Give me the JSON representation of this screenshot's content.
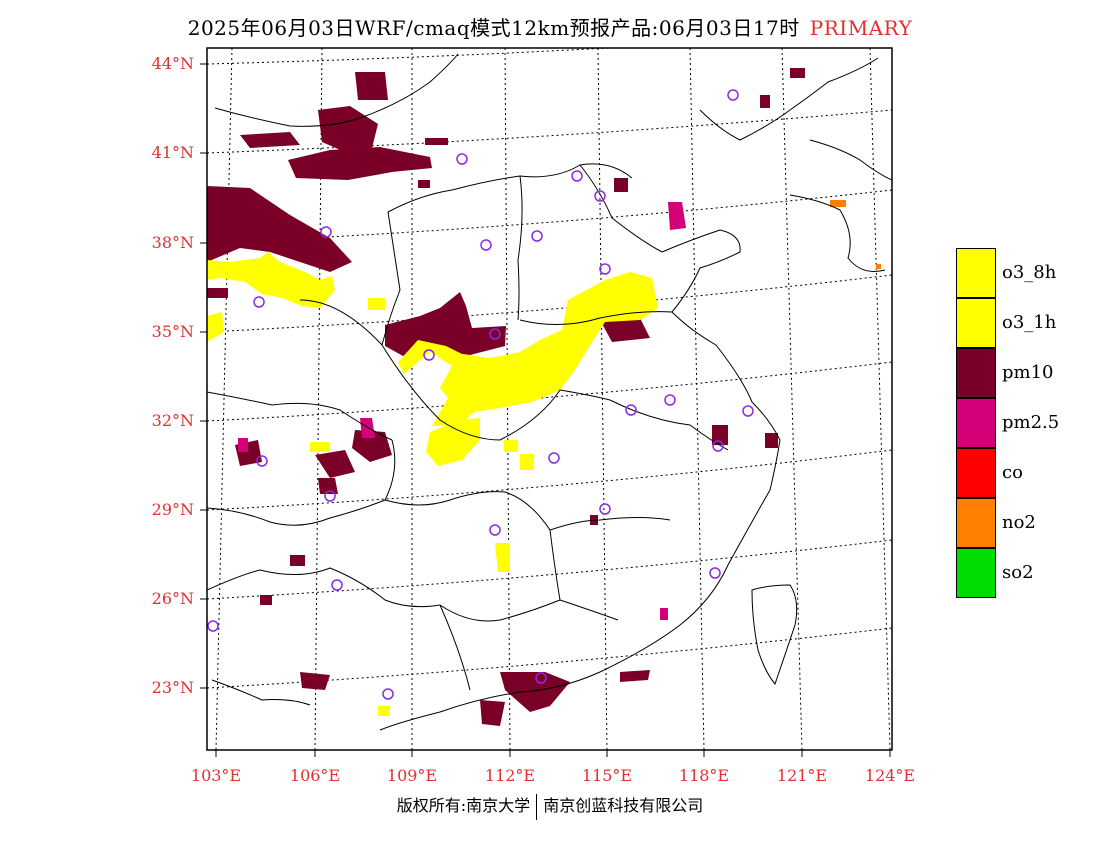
{
  "header": {
    "title": "2025年06月03日WRF/cmaq模式12km预报产品:06月03日17时",
    "tag": "PRIMARY"
  },
  "axes": {
    "lat_labels": [
      "44°N",
      "41°N",
      "38°N",
      "35°N",
      "32°N",
      "29°N",
      "26°N",
      "23°N"
    ],
    "lon_labels": [
      "103°E",
      "106°E",
      "109°E",
      "112°E",
      "115°E",
      "118°E",
      "121°E",
      "124°E"
    ]
  },
  "legend": {
    "items": [
      {
        "label": "o3_8h",
        "color": "#ffff00"
      },
      {
        "label": "o3_1h",
        "color": "#ffff00"
      },
      {
        "label": "pm10",
        "color": "#7a0028"
      },
      {
        "label": "pm2.5",
        "color": "#d4007a"
      },
      {
        "label": "co",
        "color": "#ff0000"
      },
      {
        "label": "no2",
        "color": "#ff8000"
      },
      {
        "label": "so2",
        "color": "#00dd00"
      }
    ]
  },
  "footer": {
    "left": "版权所有:南京大学",
    "right": "南京创蓝科技有限公司"
  },
  "colors": {
    "accent": "#e03030",
    "pm10": "#7a0028",
    "o3": "#ffff00",
    "pm25": "#d4007a",
    "no2": "#ff8000",
    "station_marker": "#8a2be2"
  }
}
